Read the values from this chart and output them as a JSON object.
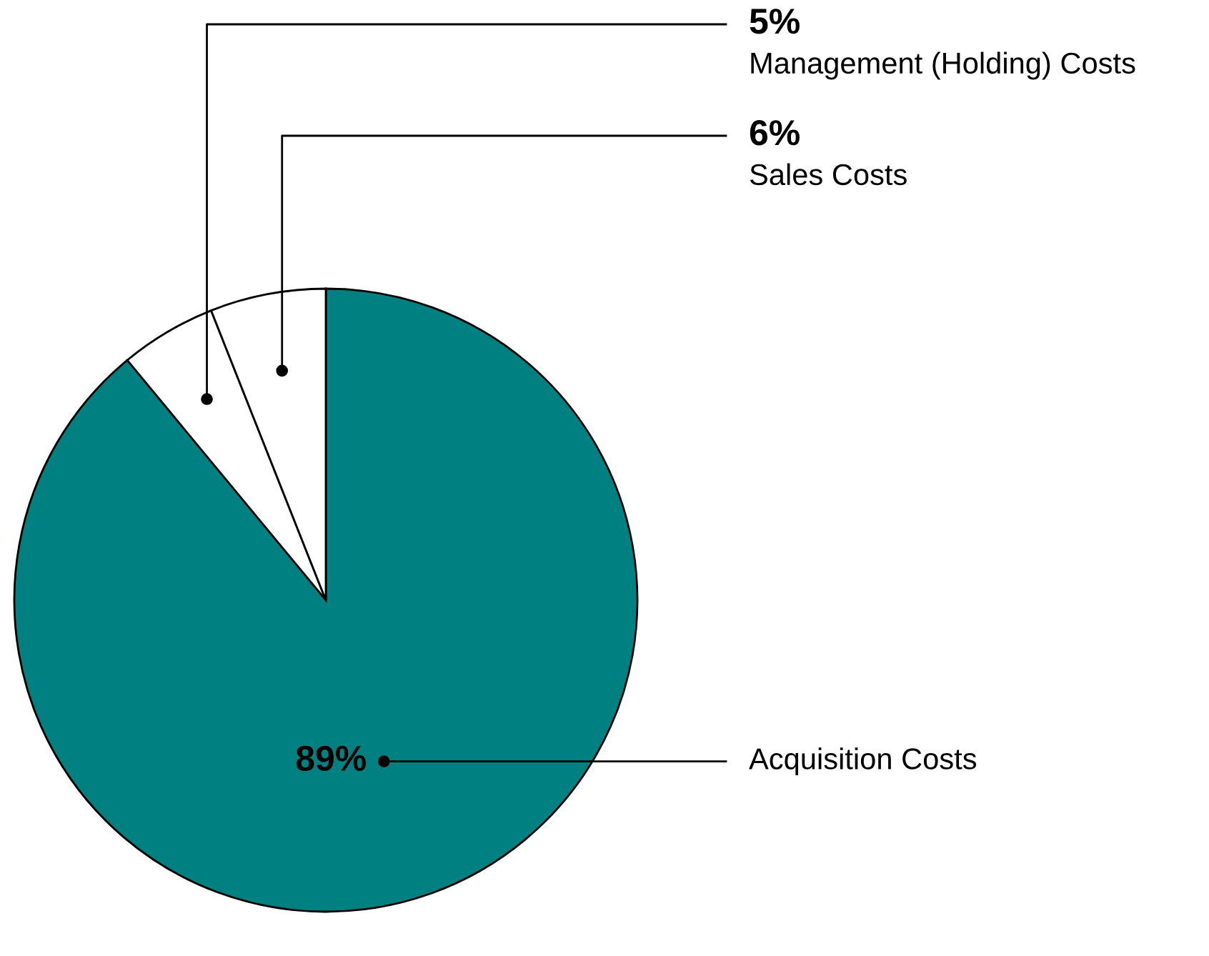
{
  "chart_data": {
    "type": "pie",
    "categories": [
      "Acquisition Costs",
      "Management (Holding) Costs",
      "Sales Costs"
    ],
    "values": [
      89,
      5,
      6
    ],
    "colors": [
      "#008080",
      "#ffffff",
      "#ffffff"
    ],
    "value_labels": [
      "89%",
      "5%",
      "6%"
    ]
  }
}
